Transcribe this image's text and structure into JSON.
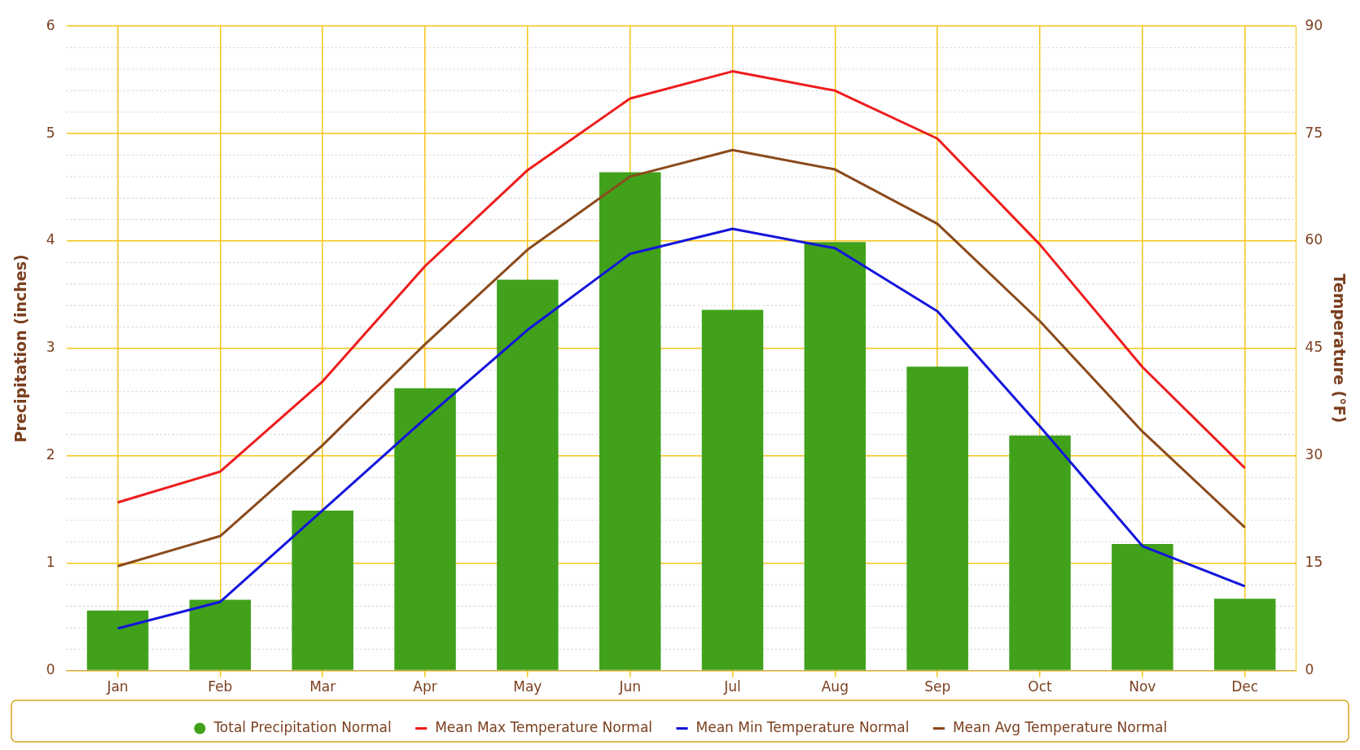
{
  "chart_data": {
    "type": "bar",
    "categories": [
      "Jan",
      "Feb",
      "Mar",
      "Apr",
      "May",
      "Jun",
      "Jul",
      "Aug",
      "Sep",
      "Oct",
      "Nov",
      "Dec"
    ],
    "ylabel": "Precipitation (inches)",
    "y2label": "Temperature (°F)",
    "ylim": [
      0,
      6
    ],
    "yticks": [
      0,
      1,
      2,
      3,
      4,
      5,
      6
    ],
    "y2lim": [
      0,
      90
    ],
    "y2ticks": [
      0,
      15,
      30,
      45,
      60,
      75,
      90
    ],
    "grid": true,
    "legend": "bottom",
    "series": [
      {
        "name": "Total Precipitation Normal",
        "color": "#41a11b",
        "values": [
          0.56,
          0.66,
          1.49,
          2.63,
          3.64,
          4.64,
          3.36,
          3.99,
          2.83,
          2.19,
          1.18,
          0.67
        ]
      },
      {
        "name": "Mean Max Temperature Normal",
        "type": "line",
        "axis": "y2",
        "color": "#ee1c1c",
        "values": [
          23.5,
          27.8,
          40.4,
          56.5,
          69.9,
          79.9,
          83.7,
          81.0,
          74.3,
          59.5,
          42.4,
          28.3
        ]
      },
      {
        "name": "Mean Min Temperature Normal",
        "type": "line",
        "axis": "y2",
        "color": "#1414dc",
        "values": [
          5.9,
          9.6,
          22.4,
          35.2,
          47.6,
          58.2,
          61.7,
          59.0,
          50.2,
          34.1,
          17.4,
          11.8
        ]
      },
      {
        "name": "Mean Avg Temperature Normal",
        "type": "line",
        "axis": "y2",
        "color": "#8b4a1c",
        "values": [
          14.6,
          18.8,
          31.5,
          45.6,
          58.8,
          69.0,
          72.7,
          70.0,
          62.4,
          48.8,
          33.4,
          20.0
        ]
      }
    ]
  }
}
